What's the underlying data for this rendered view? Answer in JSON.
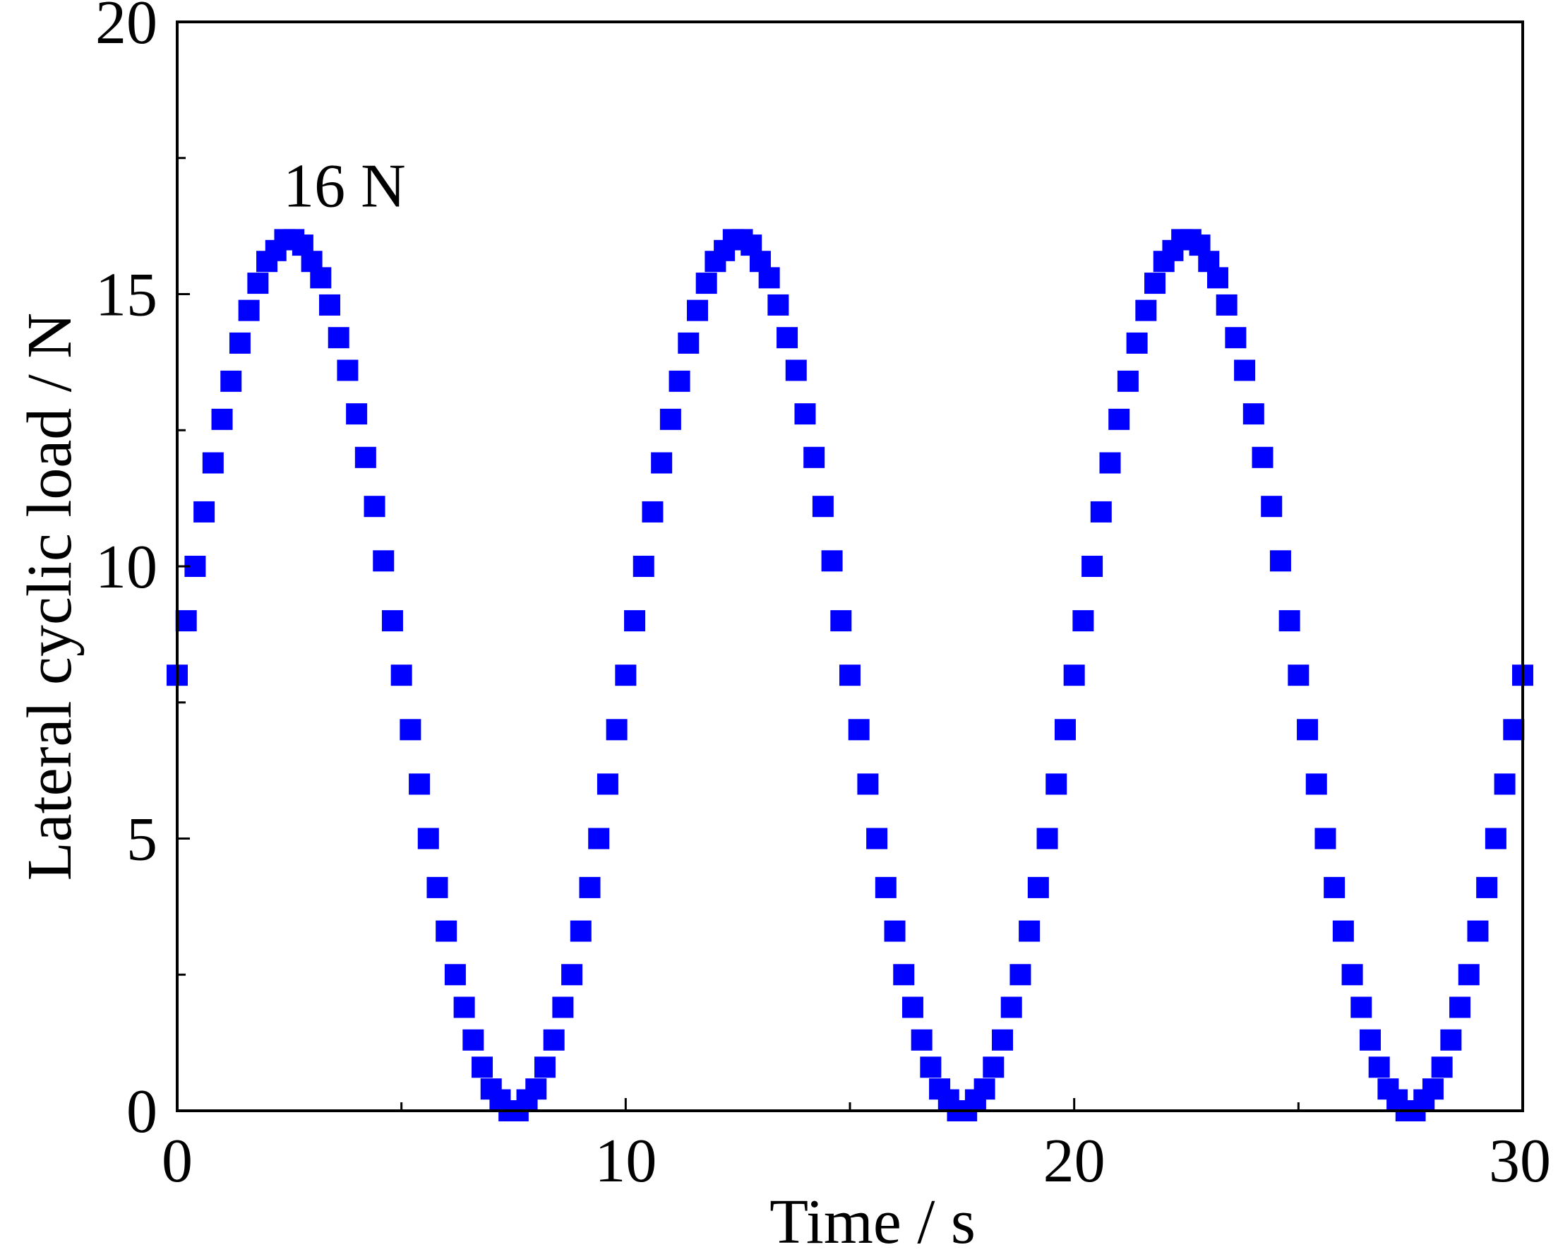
{
  "chart_data": {
    "type": "scatter",
    "title": "",
    "xlabel": "Time / s",
    "ylabel": "Lateral cyclic load / N",
    "xlim": [
      0,
      30
    ],
    "ylim": [
      0,
      20
    ],
    "x_ticks": [
      "0",
      "10",
      "20",
      "30"
    ],
    "y_ticks": [
      "0",
      "5",
      "10",
      "15",
      "20"
    ],
    "x_minor_ticks": [
      5,
      15,
      25
    ],
    "y_minor_ticks": [
      2.5,
      7.5,
      12.5,
      17.5
    ],
    "grid": false,
    "legend": "none",
    "marker": "square",
    "color": "#0000ff",
    "series": [
      {
        "description": "sinusoidal load, mean 8 N, amplitude 8 N, period 10 s, sampled every 0.2 s",
        "x": [
          0.0,
          0.2,
          0.4,
          0.6,
          0.8,
          1.0,
          1.2,
          1.4,
          1.6,
          1.8,
          2.0,
          2.2,
          2.4,
          2.6,
          2.8,
          3.0,
          3.2,
          3.4,
          3.6,
          3.8,
          4.0,
          4.2,
          4.4,
          4.6,
          4.8,
          5.0,
          5.2,
          5.4,
          5.6,
          5.8,
          6.0,
          6.2,
          6.4,
          6.6,
          6.8,
          7.0,
          7.2,
          7.4,
          7.6,
          7.8,
          8.0,
          8.2,
          8.4,
          8.6,
          8.8,
          9.0,
          9.2,
          9.4,
          9.6,
          9.8,
          10.0,
          10.2,
          10.4,
          10.6,
          10.8,
          11.0,
          11.2,
          11.4,
          11.6,
          11.8,
          12.0,
          12.2,
          12.4,
          12.6,
          12.8,
          13.0,
          13.2,
          13.4,
          13.6,
          13.8,
          14.0,
          14.2,
          14.4,
          14.6,
          14.8,
          15.0,
          15.2,
          15.4,
          15.6,
          15.8,
          16.0,
          16.2,
          16.4,
          16.6,
          16.8,
          17.0,
          17.2,
          17.4,
          17.6,
          17.8,
          18.0,
          18.2,
          18.4,
          18.6,
          18.8,
          19.0,
          19.2,
          19.4,
          19.6,
          19.8,
          20.0,
          20.2,
          20.4,
          20.6,
          20.8,
          21.0,
          21.2,
          21.4,
          21.6,
          21.8,
          22.0,
          22.2,
          22.4,
          22.6,
          22.8,
          23.0,
          23.2,
          23.4,
          23.6,
          23.8,
          24.0,
          24.2,
          24.4,
          24.6,
          24.8,
          25.0,
          25.2,
          25.4,
          25.6,
          25.8,
          26.0,
          26.2,
          26.4,
          26.6,
          26.8,
          27.0,
          27.2,
          27.4,
          27.6,
          27.8,
          28.0,
          28.2,
          28.4,
          28.6,
          28.8,
          29.0,
          29.2,
          29.4,
          29.6,
          29.8,
          30.0
        ],
        "y": [
          8.0,
          9.0,
          10.0,
          11.0,
          11.9,
          12.7,
          13.4,
          14.1,
          14.7,
          15.2,
          15.6,
          15.8,
          16.0,
          16.0,
          15.9,
          15.6,
          15.3,
          14.8,
          14.2,
          13.6,
          12.8,
          12.0,
          11.1,
          10.1,
          9.0,
          8.0,
          7.0,
          6.0,
          5.0,
          4.1,
          3.3,
          2.5,
          1.9,
          1.3,
          0.8,
          0.4,
          0.2,
          0.0,
          0.0,
          0.2,
          0.4,
          0.8,
          1.3,
          1.9,
          2.5,
          3.3,
          4.1,
          5.0,
          6.0,
          7.0,
          8.0,
          9.0,
          10.0,
          11.0,
          11.9,
          12.7,
          13.4,
          14.1,
          14.7,
          15.2,
          15.6,
          15.8,
          16.0,
          16.0,
          15.9,
          15.6,
          15.3,
          14.8,
          14.2,
          13.6,
          12.8,
          12.0,
          11.1,
          10.1,
          9.0,
          8.0,
          7.0,
          6.0,
          5.0,
          4.1,
          3.3,
          2.5,
          1.9,
          1.3,
          0.8,
          0.4,
          0.2,
          0.0,
          0.0,
          0.2,
          0.4,
          0.8,
          1.3,
          1.9,
          2.5,
          3.3,
          4.1,
          5.0,
          6.0,
          7.0,
          8.0,
          9.0,
          10.0,
          11.0,
          11.9,
          12.7,
          13.4,
          14.1,
          14.7,
          15.2,
          15.6,
          15.8,
          16.0,
          16.0,
          15.9,
          15.6,
          15.3,
          14.8,
          14.2,
          13.6,
          12.8,
          12.0,
          11.1,
          10.1,
          9.0,
          8.0,
          7.0,
          6.0,
          5.0,
          4.1,
          3.3,
          2.5,
          1.9,
          1.3,
          0.8,
          0.4,
          0.2,
          0.0,
          0.0,
          0.2,
          0.4,
          0.8,
          1.3,
          1.9,
          2.5,
          3.3,
          4.1,
          5.0,
          6.0,
          7.0,
          8.0
        ]
      }
    ],
    "annotations": [
      {
        "text": "16 N",
        "x": 3.1,
        "y": 17.0
      }
    ]
  }
}
